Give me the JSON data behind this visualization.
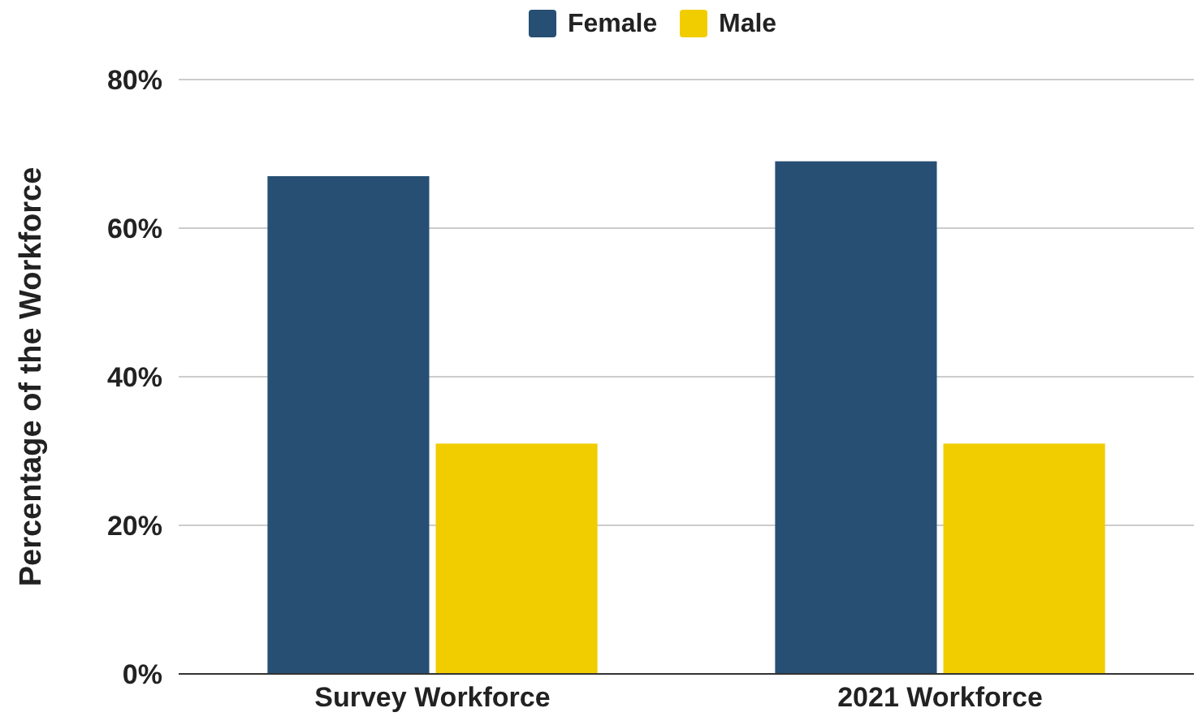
{
  "chart_data": {
    "type": "bar",
    "ylabel": "Percentage of the Workforce",
    "categories": [
      "Survey Workforce",
      "2021 Workforce"
    ],
    "series": [
      {
        "name": "Female",
        "color": "#264f73",
        "values": [
          67,
          69
        ]
      },
      {
        "name": "Male",
        "color": "#f1cd00",
        "values": [
          31,
          31
        ]
      }
    ],
    "ylim": [
      0,
      80
    ],
    "yticks": [
      {
        "value": 0,
        "label": "0%"
      },
      {
        "value": 20,
        "label": "20%"
      },
      {
        "value": 40,
        "label": "40%"
      },
      {
        "value": 60,
        "label": "60%"
      },
      {
        "value": 80,
        "label": "80%"
      }
    ],
    "grid": "y",
    "legend": "top"
  }
}
